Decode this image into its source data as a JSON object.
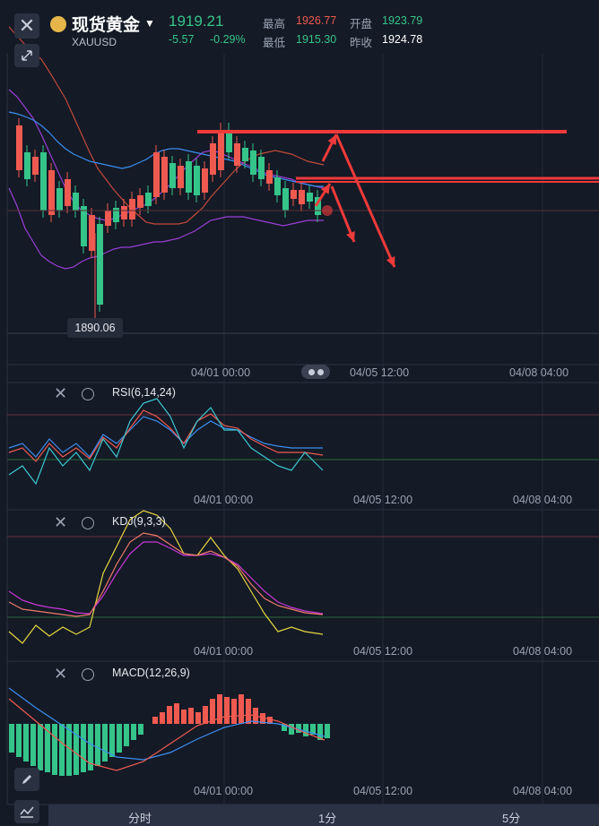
{
  "header": {
    "title": "现货黄金",
    "symbol": "XAUUSD",
    "price": "1919.21",
    "change": "-5.57",
    "change_pct": "-0.29%",
    "high_label": "最高",
    "high_value": "1926.77",
    "open_label": "开盘",
    "open_value": "1923.79",
    "low_label": "最低",
    "low_value": "1915.30",
    "prev_label": "昨收",
    "prev_value": "1924.78"
  },
  "main_chart": {
    "low_marker": "1890.06",
    "x_labels": [
      "04/01 00:00",
      "04/05 12:00",
      "04/08 04:00"
    ]
  },
  "rsi": {
    "title": "RSI(6,14,24)",
    "x_labels": [
      "04/01 00:00",
      "04/05 12:00",
      "04/08 04:00"
    ]
  },
  "kdj": {
    "title": "KDJ(9,3,3)",
    "x_labels": [
      "04/01 00:00",
      "04/05 12:00",
      "04/08 04:00"
    ]
  },
  "macd": {
    "title": "MACD(12,26,9)",
    "x_labels": [
      "04/01 00:00",
      "04/05 12:00",
      "04/08 04:00"
    ]
  },
  "bottom_tabs": [
    "分时",
    "1分",
    "5分"
  ],
  "icons": [
    "close-icon",
    "expand-icon",
    "gear-icon",
    "pencil-icon",
    "indicator-icon"
  ],
  "colors": {
    "up": "#35c48a",
    "down": "#ef5a50",
    "bg": "#141a26",
    "annotation": "#ef3a3a"
  }
}
